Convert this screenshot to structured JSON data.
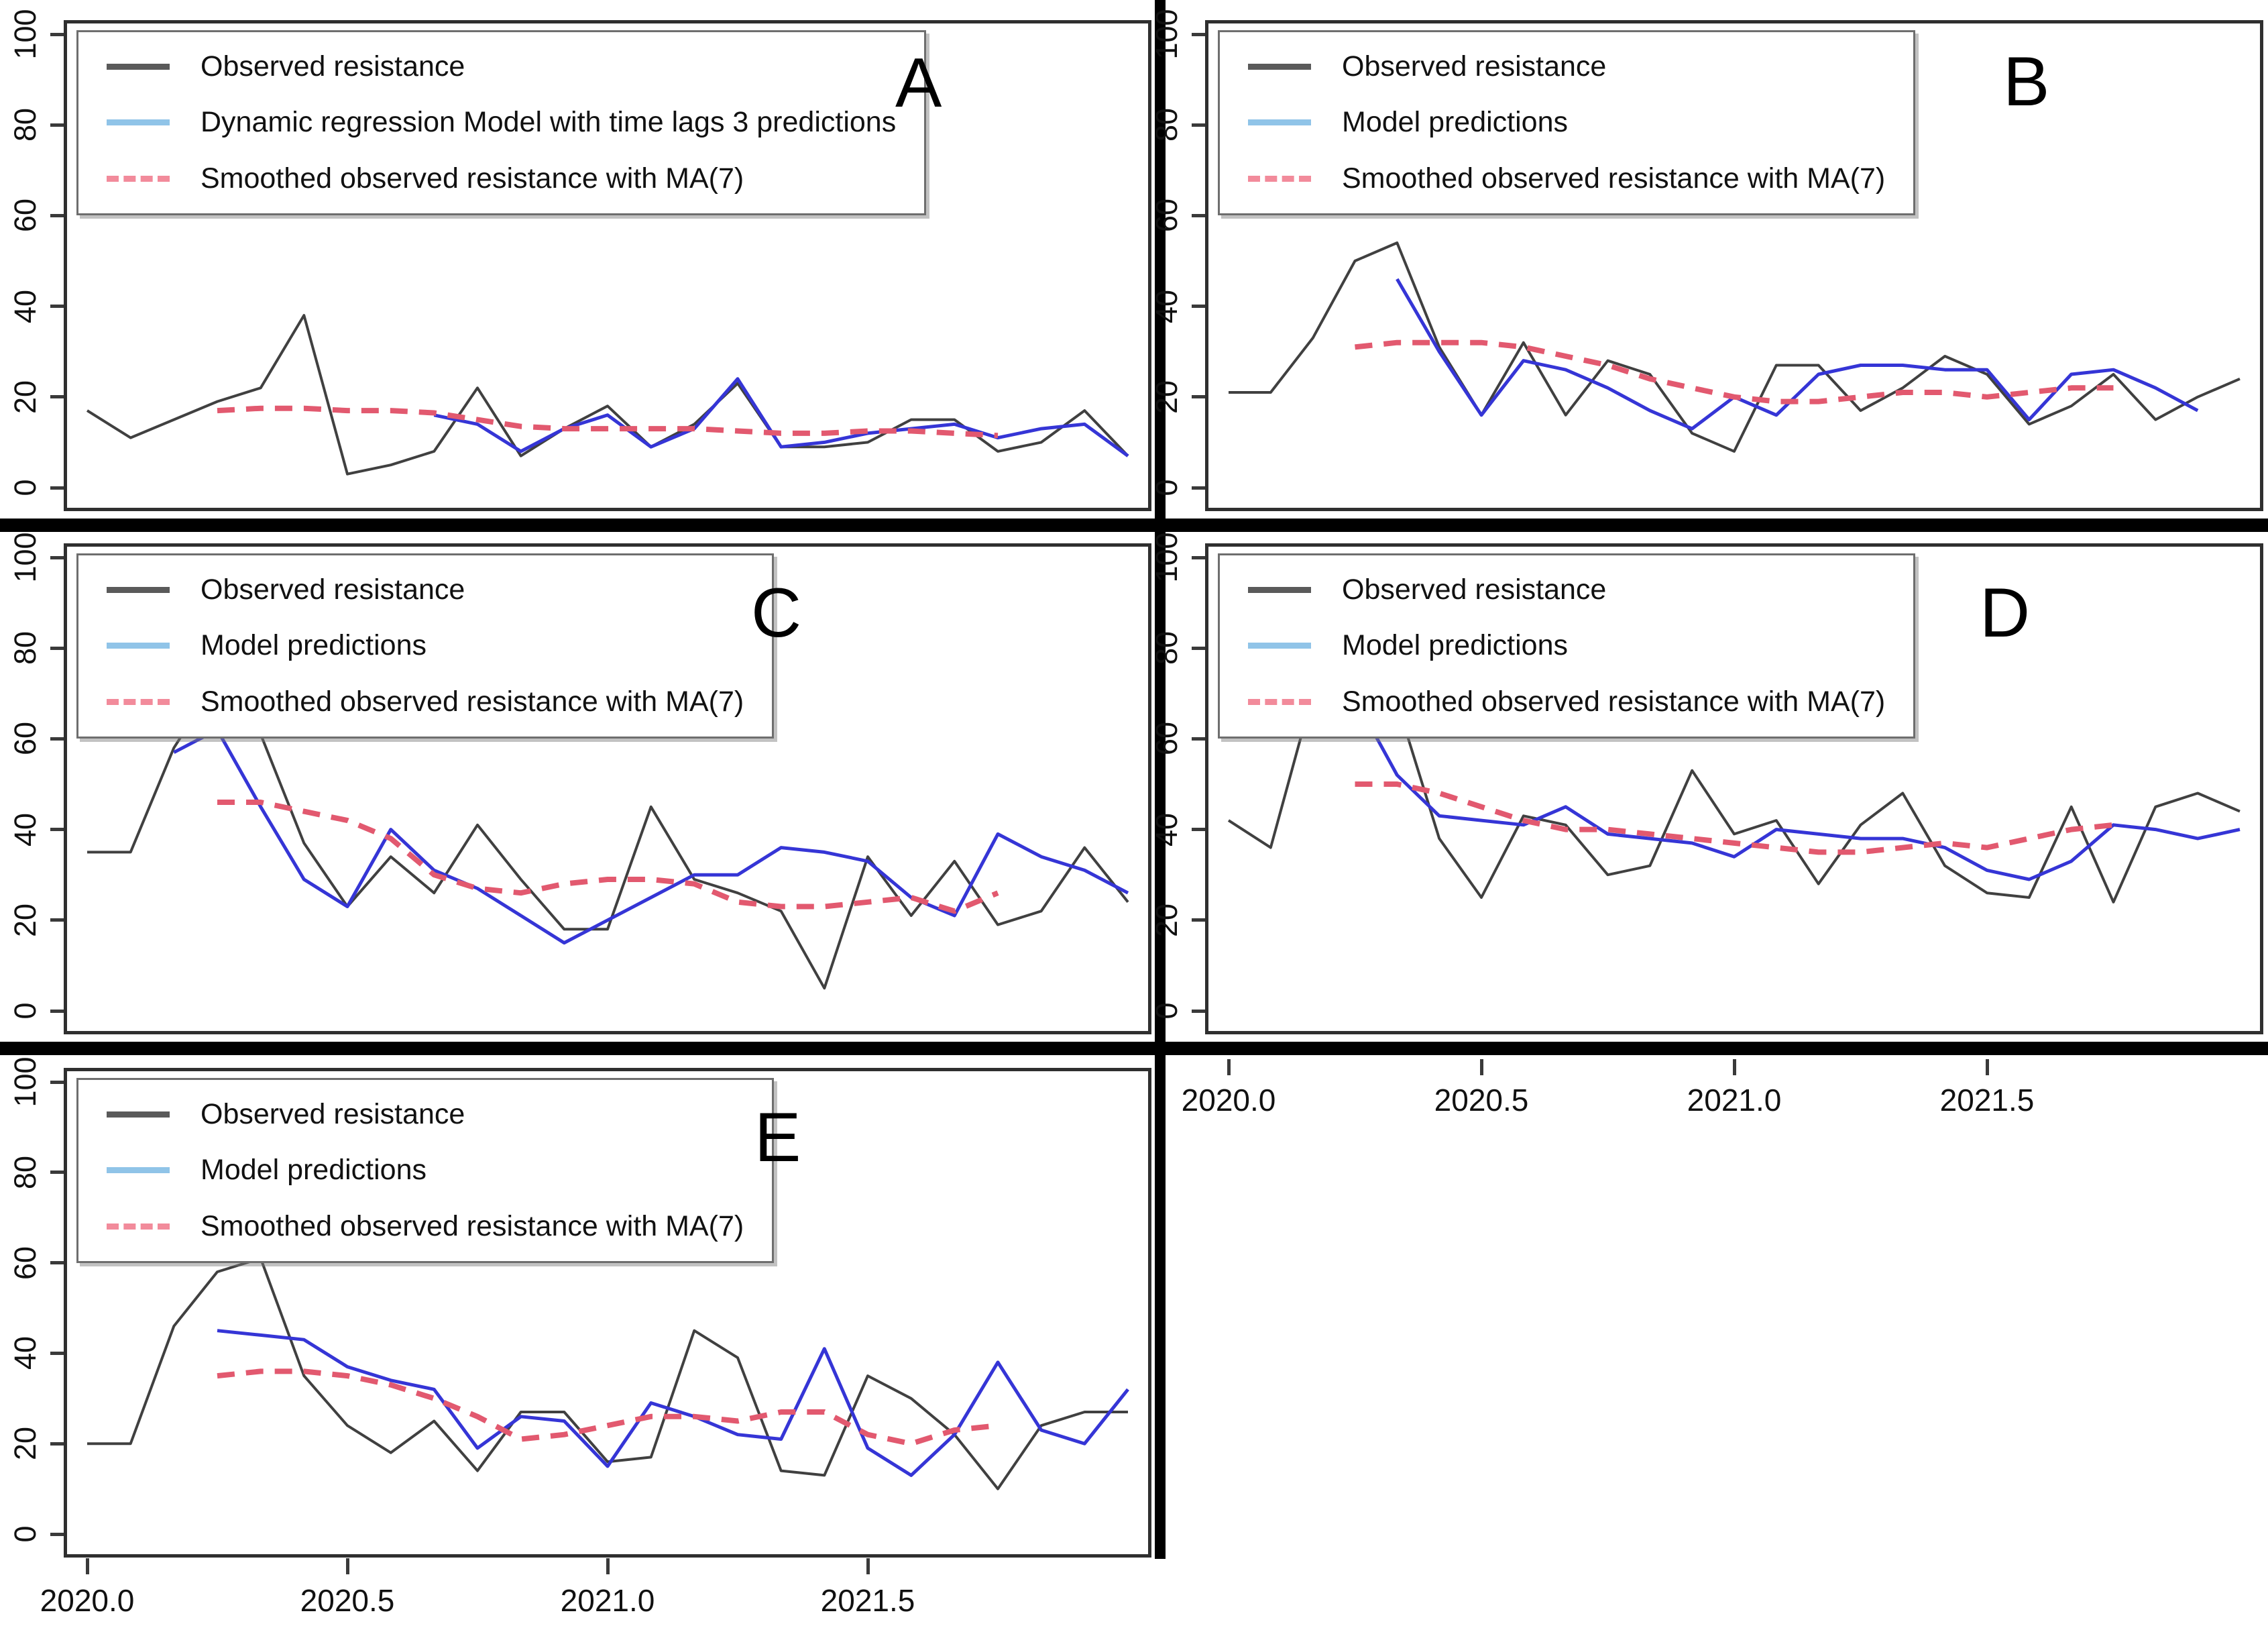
{
  "figure": {
    "background": "#ffffff",
    "divider_color": "#000000",
    "plot_border_color": "#2f2f2f"
  },
  "colors": {
    "observed_line": "#404040",
    "prediction_line": "#3535d6",
    "smoothed_line": "#e2596f",
    "legend_observed_swatch": "#5a5a5a",
    "legend_prediction_swatch": "#90c4e8",
    "legend_smoothed_swatch": "#f28b9b",
    "axis_text": "#111111"
  },
  "axes": {
    "y_tick_values": [
      0,
      20,
      40,
      60,
      80,
      100
    ],
    "y_tick_labels": [
      "0",
      "20",
      "40",
      "60",
      "80",
      "100"
    ],
    "x_tick_values": [
      2020.0,
      2020.5,
      2021.0,
      2021.5
    ],
    "x_tick_labels": [
      "2020.0",
      "2020.5",
      "2021.0",
      "2021.5"
    ]
  },
  "chart_data": [
    {
      "type": "line",
      "panel_label": "A",
      "x_start": 2020.0,
      "x_step": 0.0833,
      "ylim": [
        0,
        100
      ],
      "xticks_shown": false,
      "legend": [
        {
          "label": "Observed resistance"
        },
        {
          "label": "Dynamic regression Model with time lags 3 predictions"
        },
        {
          "label": "Smoothed observed resistance with MA(7)"
        }
      ],
      "series": [
        {
          "name": "observed-resistance",
          "color": "#404040",
          "width": 4,
          "dash": null,
          "values": [
            17,
            11,
            15,
            19,
            22,
            38,
            3,
            5,
            8,
            22,
            7,
            13,
            18,
            9,
            14,
            23,
            9,
            9,
            10,
            15,
            15,
            8,
            10,
            17,
            7
          ]
        },
        {
          "name": "model-predictions",
          "color": "#3535d6",
          "width": 5,
          "dash": null,
          "values": [
            null,
            null,
            null,
            null,
            null,
            null,
            null,
            null,
            16,
            14,
            8,
            13,
            16,
            9,
            13,
            24,
            9,
            10,
            12,
            13,
            14,
            11,
            13,
            14,
            7
          ]
        },
        {
          "name": "smoothed-ma7",
          "color": "#e2596f",
          "width": 8,
          "dash": "26 17",
          "values": [
            null,
            null,
            null,
            17,
            17.5,
            17.5,
            17,
            17,
            16.5,
            15,
            13.5,
            13,
            13,
            13,
            13,
            12.5,
            12,
            12,
            12.5,
            12.5,
            12,
            11.5,
            null,
            null,
            null
          ]
        }
      ]
    },
    {
      "type": "line",
      "panel_label": "B",
      "x_start": 2020.0,
      "x_step": 0.0833,
      "ylim": [
        0,
        100
      ],
      "xticks_shown": false,
      "legend": [
        {
          "label": "Observed resistance"
        },
        {
          "label": "Model predictions"
        },
        {
          "label": "Smoothed observed resistance with MA(7)"
        }
      ],
      "series": [
        {
          "name": "observed-resistance",
          "color": "#404040",
          "width": 4,
          "dash": null,
          "values": [
            21,
            21,
            33,
            50,
            54,
            31,
            16,
            32,
            16,
            28,
            25,
            12,
            8,
            27,
            27,
            17,
            22,
            29,
            25,
            14,
            18,
            25,
            15,
            20,
            24
          ]
        },
        {
          "name": "model-predictions",
          "color": "#3535d6",
          "width": 5,
          "dash": null,
          "values": [
            null,
            null,
            null,
            null,
            46,
            30,
            16,
            28,
            26,
            22,
            17,
            13,
            20,
            16,
            25,
            27,
            27,
            26,
            26,
            15,
            25,
            26,
            22,
            17,
            null
          ]
        },
        {
          "name": "smoothed-ma7",
          "color": "#e2596f",
          "width": 8,
          "dash": "26 17",
          "values": [
            null,
            null,
            null,
            31,
            32,
            32,
            32,
            31,
            29,
            27,
            24,
            22,
            20,
            19,
            19,
            20,
            21,
            21,
            20,
            21,
            22,
            22,
            null,
            null,
            null
          ]
        }
      ]
    },
    {
      "type": "line",
      "panel_label": "C",
      "x_start": 2020.0,
      "x_step": 0.0833,
      "ylim": [
        0,
        100
      ],
      "xticks_shown": false,
      "legend": [
        {
          "label": "Observed resistance"
        },
        {
          "label": "Model predictions"
        },
        {
          "label": "Smoothed observed resistance with MA(7)"
        }
      ],
      "series": [
        {
          "name": "observed-resistance",
          "color": "#404040",
          "width": 4,
          "dash": null,
          "values": [
            35,
            35,
            58,
            73,
            61,
            37,
            23,
            34,
            26,
            41,
            29,
            18,
            18,
            45,
            29,
            26,
            22,
            5,
            34,
            21,
            33,
            19,
            22,
            36,
            24
          ]
        },
        {
          "name": "model-predictions",
          "color": "#3535d6",
          "width": 5,
          "dash": null,
          "values": [
            null,
            null,
            57,
            62,
            45,
            29,
            23,
            40,
            31,
            27,
            21,
            15,
            20,
            25,
            30,
            30,
            36,
            35,
            33,
            25,
            21,
            39,
            34,
            31,
            26
          ]
        },
        {
          "name": "smoothed-ma7",
          "color": "#e2596f",
          "width": 8,
          "dash": "26 17",
          "values": [
            null,
            null,
            null,
            46,
            46,
            44,
            42,
            38,
            30,
            27,
            26,
            28,
            29,
            29,
            28,
            24,
            23,
            23,
            24,
            25,
            22,
            26,
            null,
            null,
            null
          ]
        }
      ]
    },
    {
      "type": "line",
      "panel_label": "D",
      "x_start": 2020.0,
      "x_step": 0.0833,
      "ylim": [
        0,
        100
      ],
      "xticks_shown": true,
      "legend": [
        {
          "label": "Observed resistance"
        },
        {
          "label": "Model predictions"
        },
        {
          "label": "Smoothed observed resistance with MA(7)"
        }
      ],
      "series": [
        {
          "name": "observed-resistance",
          "color": "#404040",
          "width": 4,
          "dash": null,
          "values": [
            42,
            36,
            70,
            73,
            68,
            38,
            25,
            43,
            41,
            30,
            32,
            53,
            39,
            42,
            28,
            41,
            48,
            32,
            26,
            25,
            45,
            24,
            45,
            48,
            44
          ]
        },
        {
          "name": "model-predictions",
          "color": "#3535d6",
          "width": 5,
          "dash": null,
          "values": [
            null,
            null,
            70,
            69,
            52,
            43,
            42,
            41,
            45,
            39,
            38,
            37,
            34,
            40,
            39,
            38,
            38,
            36,
            31,
            29,
            33,
            41,
            40,
            38,
            40
          ]
        },
        {
          "name": "smoothed-ma7",
          "color": "#e2596f",
          "width": 8,
          "dash": "26 17",
          "values": [
            null,
            null,
            null,
            50,
            50,
            48,
            45,
            42,
            40,
            40,
            39,
            38,
            37,
            36,
            35,
            35,
            36,
            37,
            36,
            38,
            40,
            41,
            null,
            null,
            null
          ]
        }
      ]
    },
    {
      "type": "line",
      "panel_label": "E",
      "x_start": 2020.0,
      "x_step": 0.0833,
      "ylim": [
        0,
        100
      ],
      "xticks_shown": true,
      "legend": [
        {
          "label": "Observed resistance"
        },
        {
          "label": "Model predictions"
        },
        {
          "label": "Smoothed observed resistance with MA(7)"
        }
      ],
      "series": [
        {
          "name": "observed-resistance",
          "color": "#404040",
          "width": 4,
          "dash": null,
          "values": [
            20,
            20,
            46,
            58,
            61,
            35,
            24,
            18,
            25,
            14,
            27,
            27,
            16,
            17,
            45,
            39,
            14,
            13,
            35,
            30,
            22,
            10,
            24,
            27,
            27
          ]
        },
        {
          "name": "model-predictions",
          "color": "#3535d6",
          "width": 5,
          "dash": null,
          "values": [
            null,
            null,
            null,
            45,
            44,
            43,
            37,
            34,
            32,
            19,
            26,
            25,
            15,
            29,
            26,
            22,
            21,
            41,
            19,
            13,
            22,
            38,
            23,
            20,
            32
          ]
        },
        {
          "name": "smoothed-ma7",
          "color": "#e2596f",
          "width": 8,
          "dash": "26 17",
          "values": [
            null,
            null,
            null,
            35,
            36,
            36,
            35,
            33,
            30,
            26,
            21,
            22,
            24,
            26,
            26,
            25,
            27,
            27,
            22,
            20,
            23,
            24,
            null,
            null,
            null
          ]
        }
      ]
    }
  ]
}
